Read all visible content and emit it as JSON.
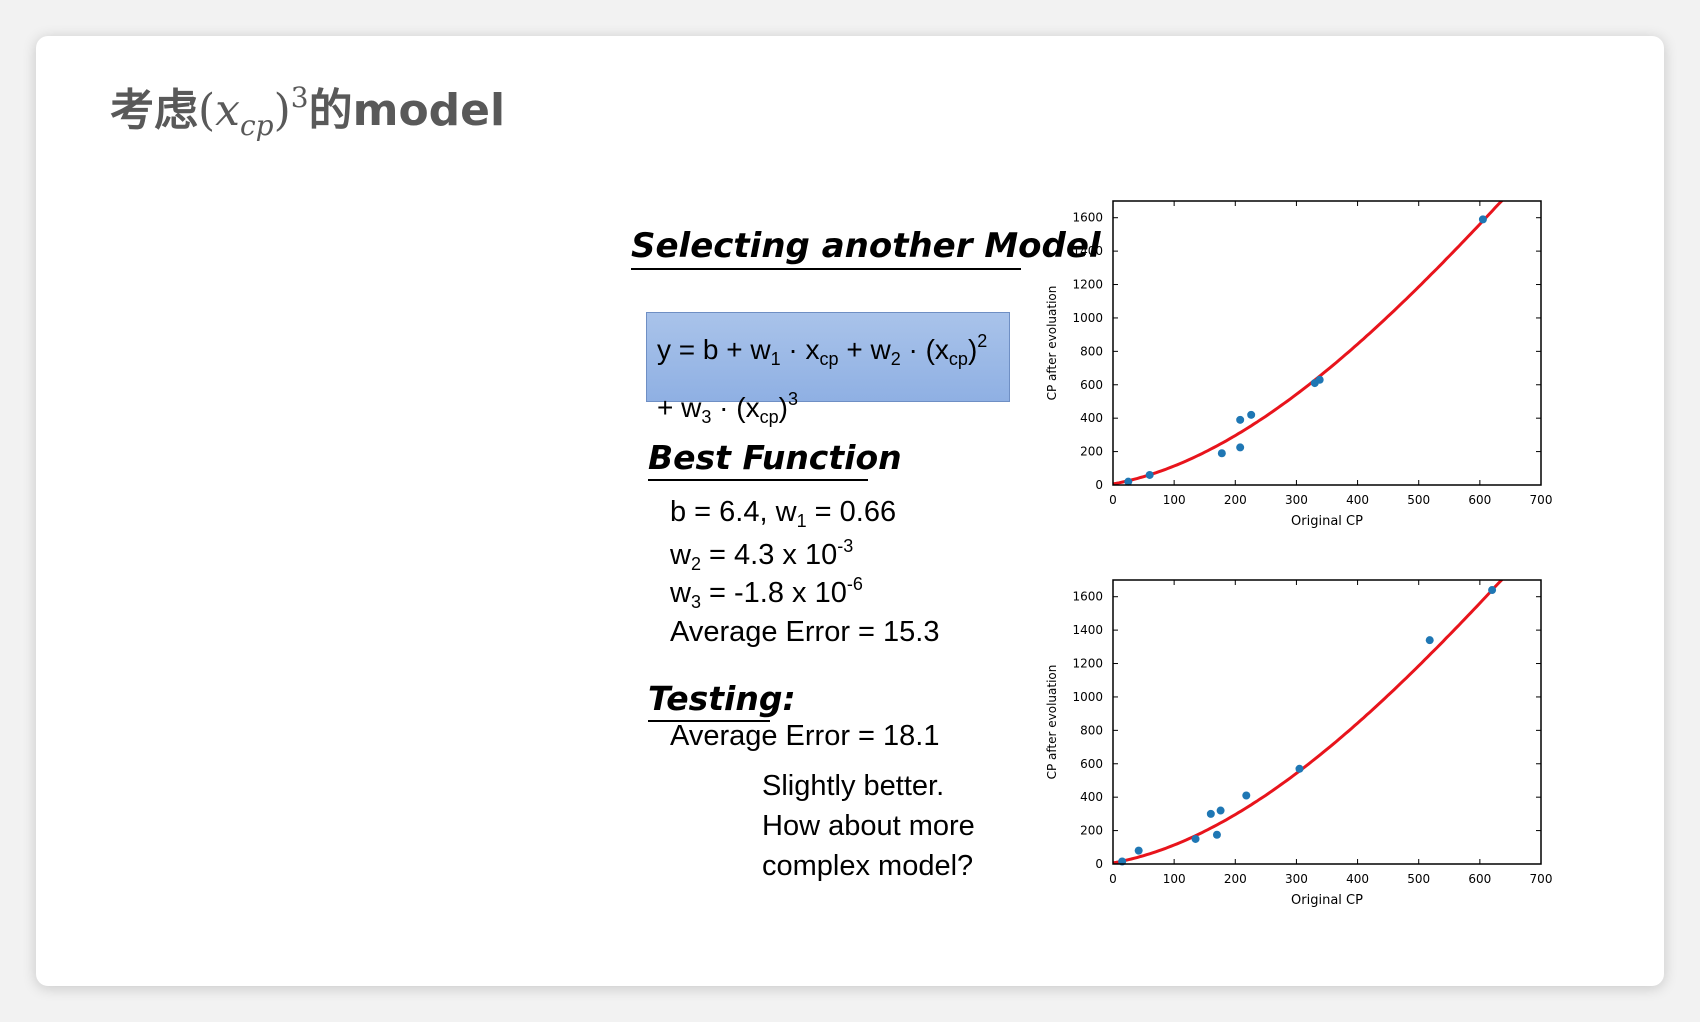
{
  "slide": {
    "title_prefix": "考虑",
    "title_math_base": "x",
    "title_math_sub": "cp",
    "title_math_exp": "3",
    "title_suffix": "的model"
  },
  "heading_select": "Selecting another Model",
  "formula": {
    "line1": [
      "y = b + w",
      "1",
      " · x",
      "cp",
      " + w",
      "2",
      " · (x",
      "cp",
      ")",
      "2"
    ],
    "line2": [
      "+ w",
      "3",
      " · (x",
      "cp",
      ")",
      "3"
    ]
  },
  "heading_best": "Best Function",
  "best": {
    "line1": [
      "b = 6.4, w",
      "1",
      " = 0.66"
    ],
    "line2": [
      "w",
      "2",
      " = 4.3 x 10",
      "-3"
    ],
    "line3": [
      "w",
      "3",
      " = -1.8 x 10",
      "-6"
    ],
    "avg_error": "Average Error = 15.3"
  },
  "heading_test": "Testing:",
  "test": {
    "avg_error": "Average Error = 18.1",
    "comment_lines": [
      "Slightly better.",
      "How about more",
      "complex model?"
    ]
  },
  "chart_data": [
    {
      "type": "scatter",
      "xlabel": "Original CP",
      "ylabel": "CP after evoluation",
      "xlim": [
        0,
        700
      ],
      "ylim": [
        0,
        1700
      ],
      "xticks": [
        0,
        100,
        200,
        300,
        400,
        500,
        600,
        700
      ],
      "yticks": [
        0,
        200,
        400,
        600,
        800,
        1000,
        1200,
        1400,
        1600
      ],
      "points_color": "#1f77b4",
      "curve_color": "#e8141c",
      "curve": {
        "b": 6.4,
        "w1": 0.66,
        "w2": 0.0043,
        "w3": -1.8e-06
      },
      "points": [
        [
          25,
          20
        ],
        [
          60,
          60
        ],
        [
          178,
          190
        ],
        [
          208,
          390
        ],
        [
          208,
          225
        ],
        [
          226,
          420
        ],
        [
          330,
          610
        ],
        [
          338,
          630
        ],
        [
          605,
          1590
        ]
      ]
    },
    {
      "type": "scatter",
      "xlabel": "Original CP",
      "ylabel": "CP after evoluation",
      "xlim": [
        0,
        700
      ],
      "ylim": [
        0,
        1700
      ],
      "xticks": [
        0,
        100,
        200,
        300,
        400,
        500,
        600,
        700
      ],
      "yticks": [
        0,
        200,
        400,
        600,
        800,
        1000,
        1200,
        1400,
        1600
      ],
      "points_color": "#1f77b4",
      "curve_color": "#e8141c",
      "curve": {
        "b": 6.4,
        "w1": 0.66,
        "w2": 0.0043,
        "w3": -1.8e-06
      },
      "points": [
        [
          15,
          15
        ],
        [
          42,
          80
        ],
        [
          135,
          150
        ],
        [
          160,
          300
        ],
        [
          170,
          175
        ],
        [
          176,
          320
        ],
        [
          218,
          410
        ],
        [
          305,
          570
        ],
        [
          518,
          1340
        ],
        [
          620,
          1640
        ]
      ]
    }
  ]
}
